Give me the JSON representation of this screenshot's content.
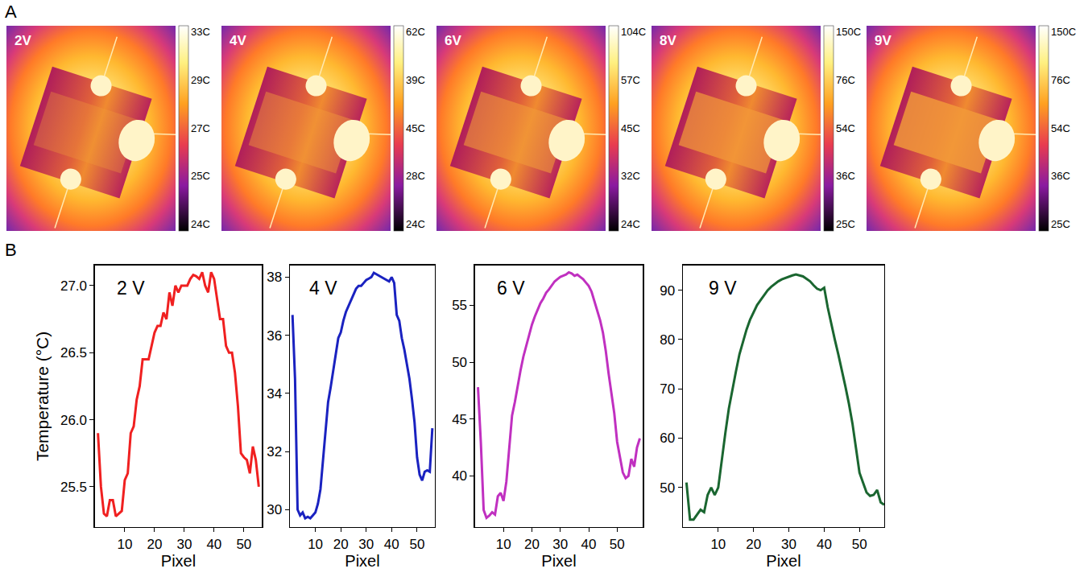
{
  "panel_a": {
    "letter": "A",
    "images": [
      {
        "label": "2V",
        "colorbar": [
          "33C",
          "29C",
          "27C",
          "25C",
          "24C"
        ]
      },
      {
        "label": "4V",
        "colorbar": [
          "62C",
          "39C",
          "45C",
          "28C",
          "24C"
        ]
      },
      {
        "label": "6V",
        "colorbar": [
          "104C",
          "57C",
          "45C",
          "32C",
          "24C"
        ]
      },
      {
        "label": "8V",
        "colorbar": [
          "150C",
          "76C",
          "54C",
          "36C",
          "25C"
        ]
      },
      {
        "label": "9V",
        "colorbar": [
          "150C",
          "76C",
          "54C",
          "36C",
          "25C"
        ]
      }
    ]
  },
  "panel_b": {
    "letter": "B"
  },
  "chart_data": [
    {
      "type": "line",
      "label": "2 V",
      "x_label": "Pixel",
      "y_label": "Temperature (°C)",
      "color": "#f02020",
      "x": [
        1,
        2,
        3,
        4,
        5,
        6,
        7,
        8,
        9,
        10,
        11,
        12,
        13,
        14,
        15,
        16,
        17,
        18,
        19,
        20,
        21,
        22,
        23,
        24,
        25,
        26,
        27,
        28,
        29,
        30,
        31,
        32,
        33,
        34,
        35,
        36,
        37,
        38,
        39,
        40,
        41,
        42,
        43,
        44,
        45,
        46,
        47,
        48,
        49,
        50,
        51,
        52,
        53,
        54,
        55
      ],
      "values": [
        25.9,
        25.5,
        25.3,
        25.28,
        25.4,
        25.4,
        25.28,
        25.3,
        25.32,
        25.55,
        25.6,
        25.9,
        25.95,
        26.15,
        26.25,
        26.45,
        26.45,
        26.45,
        26.55,
        26.65,
        26.7,
        26.7,
        26.8,
        26.75,
        26.95,
        26.85,
        27.0,
        26.95,
        27.0,
        27.0,
        27.0,
        27.05,
        27.08,
        27.07,
        27.05,
        27.1,
        27.0,
        26.95,
        27.1,
        27.05,
        26.9,
        26.75,
        26.75,
        26.55,
        26.5,
        26.5,
        26.35,
        26.1,
        25.75,
        25.72,
        25.7,
        25.6,
        25.8,
        25.7,
        25.5
      ],
      "xlim": [
        0,
        56
      ],
      "xticks": [
        10,
        20,
        30,
        40,
        50
      ],
      "ylim": [
        25.2,
        27.15
      ],
      "yticks": [
        25.5,
        {
          "value": 26,
          "label": "26.0"
        },
        26.5,
        {
          "value": 27,
          "label": "27.0"
        }
      ]
    },
    {
      "type": "line",
      "label": "4 V",
      "x_label": "Pixel",
      "color": "#1a22c0",
      "x": [
        1,
        2,
        3,
        4,
        5,
        6,
        7,
        8,
        9,
        10,
        11,
        12,
        13,
        14,
        15,
        16,
        17,
        18,
        19,
        20,
        21,
        22,
        23,
        24,
        25,
        26,
        27,
        28,
        29,
        30,
        31,
        32,
        33,
        34,
        35,
        36,
        37,
        38,
        39,
        40,
        41,
        42,
        43,
        44,
        45,
        46,
        47,
        48,
        49,
        50,
        51,
        52,
        53,
        54,
        55,
        56
      ],
      "values": [
        36.7,
        34.5,
        30.0,
        29.8,
        29.9,
        29.7,
        29.75,
        29.7,
        29.8,
        29.9,
        30.2,
        30.7,
        31.7,
        32.7,
        33.7,
        34.2,
        34.8,
        35.4,
        35.9,
        36.1,
        36.5,
        36.8,
        37.0,
        37.2,
        37.4,
        37.6,
        37.7,
        37.7,
        37.8,
        37.9,
        37.95,
        38.0,
        38.15,
        38.1,
        38.05,
        38.0,
        37.95,
        37.9,
        37.85,
        38.0,
        37.8,
        36.7,
        36.5,
        35.9,
        35.5,
        35.0,
        34.5,
        33.8,
        33.0,
        31.8,
        31.2,
        31.0,
        31.3,
        31.35,
        31.3,
        32.8
      ],
      "xlim": [
        0,
        57
      ],
      "xticks": [
        10,
        20,
        30,
        40,
        50
      ],
      "ylim": [
        29.4,
        38.4
      ],
      "yticks": [
        30,
        32,
        34,
        36,
        38
      ]
    },
    {
      "type": "line",
      "label": "6 V",
      "x_label": "Pixel",
      "color": "#c030c0",
      "x": [
        1,
        2,
        3,
        4,
        5,
        6,
        7,
        8,
        9,
        10,
        11,
        12,
        13,
        14,
        15,
        16,
        17,
        18,
        19,
        20,
        21,
        22,
        23,
        24,
        25,
        26,
        27,
        28,
        29,
        30,
        31,
        32,
        33,
        34,
        35,
        36,
        37,
        38,
        39,
        40,
        41,
        42,
        43,
        44,
        45,
        46,
        47,
        48,
        49,
        50,
        51,
        52,
        53,
        54,
        55,
        56,
        57,
        58
      ],
      "values": [
        47.8,
        43.0,
        37.0,
        36.3,
        36.5,
        36.8,
        36.6,
        38.2,
        38.5,
        37.8,
        39.5,
        42.5,
        45.3,
        46.5,
        48.0,
        49.3,
        50.5,
        51.5,
        52.5,
        53.3,
        54.0,
        54.6,
        55.2,
        55.6,
        56.1,
        56.4,
        56.8,
        57.1,
        57.3,
        57.5,
        57.6,
        57.7,
        57.9,
        57.8,
        57.6,
        57.7,
        57.5,
        57.3,
        57.0,
        56.7,
        56.2,
        55.3,
        54.6,
        53.7,
        52.6,
        51.0,
        49.0,
        47.3,
        45.5,
        43.0,
        41.5,
        40.3,
        39.8,
        40.0,
        41.5,
        40.8,
        42.5,
        43.3
      ],
      "xlim": [
        0,
        59
      ],
      "xticks": [
        10,
        20,
        30,
        40,
        50
      ],
      "ylim": [
        35.5,
        58.5
      ],
      "yticks": [
        40,
        45,
        50,
        55
      ]
    },
    {
      "type": "line",
      "label": "9 V",
      "x_label": "Pixel",
      "color": "#1a6630",
      "x": [
        1,
        2,
        3,
        4,
        5,
        6,
        7,
        8,
        9,
        10,
        11,
        12,
        13,
        14,
        15,
        16,
        17,
        18,
        19,
        20,
        21,
        22,
        23,
        24,
        25,
        26,
        27,
        28,
        29,
        30,
        31,
        32,
        33,
        34,
        35,
        36,
        37,
        38,
        39,
        40,
        41,
        42,
        43,
        44,
        45,
        46,
        47,
        48,
        49,
        50,
        51,
        52,
        53,
        54,
        55,
        56,
        57
      ],
      "values": [
        51,
        43.5,
        43.5,
        44.5,
        45.5,
        45,
        48.5,
        50,
        48.5,
        50,
        56,
        61,
        66,
        70,
        73.5,
        77,
        79.5,
        82,
        84,
        85.5,
        87,
        88,
        89,
        90,
        90.7,
        91.3,
        91.8,
        92.2,
        92.5,
        92.8,
        93,
        93.2,
        93,
        92.8,
        92.3,
        91.8,
        91,
        90.3,
        90,
        90.5,
        86.5,
        83,
        80,
        77,
        74,
        70.5,
        67,
        63,
        58,
        53,
        51,
        49,
        48.3,
        48.5,
        49.5,
        47,
        46.5
      ],
      "xlim": [
        0,
        57
      ],
      "xticks": [
        10,
        20,
        30,
        40,
        50
      ],
      "ylim": [
        42,
        95
      ],
      "yticks": [
        50,
        60,
        70,
        80,
        90
      ]
    }
  ]
}
